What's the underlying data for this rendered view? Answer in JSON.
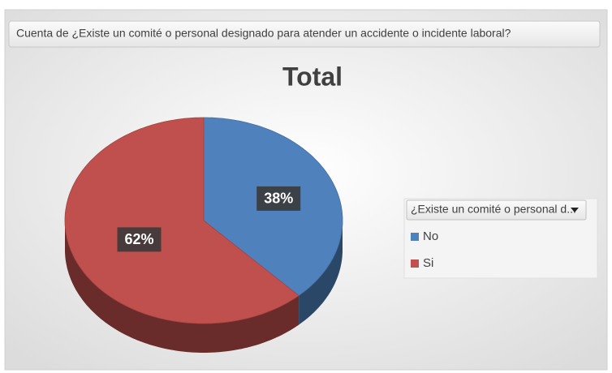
{
  "chart_data": {
    "type": "pie",
    "field_button": "Cuenta de ¿Existe un comité o personal designado para atender un accidente o incidente laboral?",
    "title": "Total",
    "legend_title": "¿Existe un comité o personal d...",
    "categories": [
      "No",
      "Si"
    ],
    "values": [
      38,
      62
    ],
    "value_labels": [
      "38%",
      "62%"
    ],
    "colors": [
      "#4f81bd",
      "#c0504d"
    ],
    "legend": "right"
  }
}
